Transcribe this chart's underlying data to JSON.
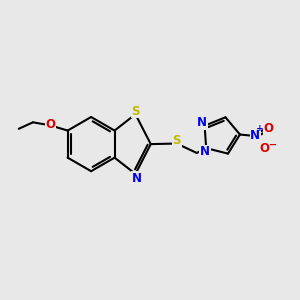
{
  "bg_color": "#e8e8e8",
  "bond_color": "#000000",
  "bond_width": 1.5,
  "dbo": 0.055,
  "atom_colors": {
    "S": "#bbbb00",
    "N": "#0000ee",
    "O": "#dd0000",
    "C": "#000000"
  },
  "font_size": 8.5,
  "figsize": [
    3.0,
    3.0
  ],
  "dpi": 100,
  "xlim": [
    0,
    10
  ],
  "ylim": [
    0,
    10
  ],
  "bx": 3.0,
  "by": 5.2,
  "r_benz": 0.92
}
